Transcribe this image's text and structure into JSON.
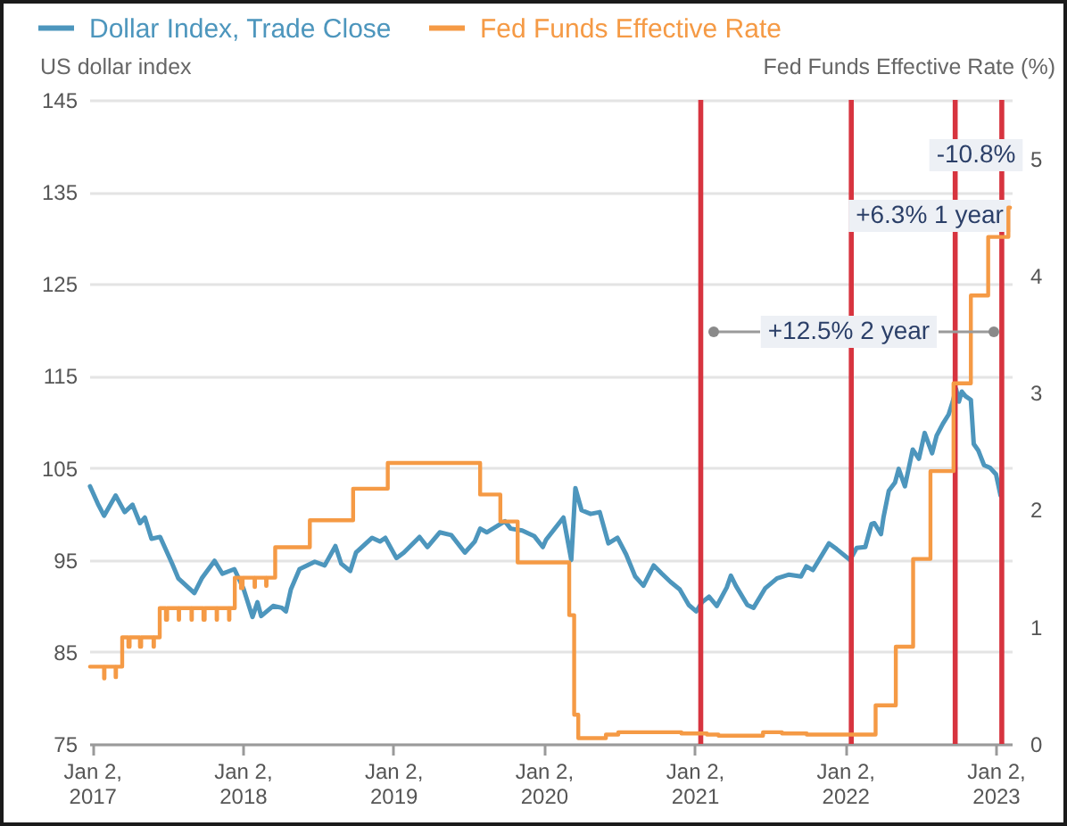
{
  "chart_data": {
    "type": "line",
    "ylabel": "US dollar index",
    "y2label": "Fed Funds Effective Rate (%)",
    "xlim": [
      "2016-12-26",
      "2023-02-10"
    ],
    "xticks": [
      {
        "value": "2017-01-02",
        "label": "Jan 2, 2017"
      },
      {
        "value": "2018-01-02",
        "label": "Jan 2, 2018"
      },
      {
        "value": "2019-01-02",
        "label": "Jan 2, 2019"
      },
      {
        "value": "2020-01-02",
        "label": "Jan 2, 2020"
      },
      {
        "value": "2021-01-02",
        "label": "Jan 2, 2021"
      },
      {
        "value": "2022-01-02",
        "label": "Jan 2, 2022"
      },
      {
        "value": "2023-01-02",
        "label": "Jan 2, 2023"
      }
    ],
    "ylim": [
      75,
      145
    ],
    "yticks": [
      75,
      85,
      95,
      105,
      115,
      125,
      135,
      145
    ],
    "y2lim": [
      0,
      5.5
    ],
    "y2ticks": [
      0,
      1,
      2,
      3,
      4,
      5
    ],
    "grid": "y",
    "legend": "top left",
    "series": [
      {
        "name": "Dollar Index, Trade Close",
        "color": "#4d96bd",
        "x": [
          "2016-12-28",
          "2017-01-16",
          "2017-01-31",
          "2017-02-28",
          "2017-03-22",
          "2017-04-10",
          "2017-04-28",
          "2017-05-10",
          "2017-05-26",
          "2017-06-16",
          "2017-07-15",
          "2017-07-30",
          "2017-09-07",
          "2017-09-25",
          "2017-10-26",
          "2017-11-14",
          "2017-12-13",
          "2018-01-04",
          "2018-01-26",
          "2018-02-07",
          "2018-02-16",
          "2018-03-17",
          "2018-04-07",
          "2018-04-17",
          "2018-04-29",
          "2018-05-20",
          "2018-06-26",
          "2018-07-20",
          "2018-08-15",
          "2018-08-29",
          "2018-09-20",
          "2018-10-04",
          "2018-11-12",
          "2018-12-01",
          "2018-12-14",
          "2019-01-10",
          "2019-01-28",
          "2019-03-07",
          "2019-03-26",
          "2019-04-25",
          "2019-05-23",
          "2019-06-25",
          "2019-07-19",
          "2019-08-01",
          "2019-08-17",
          "2019-09-30",
          "2019-10-14",
          "2019-11-11",
          "2019-12-10",
          "2019-12-31",
          "2020-01-08",
          "2020-02-19",
          "2020-03-09",
          "2020-03-19",
          "2020-04-03",
          "2020-04-25",
          "2020-05-17",
          "2020-06-07",
          "2020-06-29",
          "2020-07-20",
          "2020-08-11",
          "2020-08-31",
          "2020-09-25",
          "2020-10-15",
          "2020-11-05",
          "2020-11-27",
          "2020-12-19",
          "2021-01-06",
          "2021-01-20",
          "2021-02-06",
          "2021-02-25",
          "2021-03-21",
          "2021-03-31",
          "2021-04-12",
          "2021-05-10",
          "2021-05-25",
          "2021-06-22",
          "2021-07-21",
          "2021-08-19",
          "2021-09-17",
          "2021-09-30",
          "2021-10-16",
          "2021-11-24",
          "2021-12-12",
          "2022-01-14",
          "2022-01-30",
          "2022-02-20",
          "2022-03-07",
          "2022-03-14",
          "2022-03-30",
          "2022-04-05",
          "2022-04-18",
          "2022-05-03",
          "2022-05-12",
          "2022-05-27",
          "2022-06-15",
          "2022-06-30",
          "2022-07-14",
          "2022-08-01",
          "2022-08-12",
          "2022-08-27",
          "2022-09-10",
          "2022-09-20",
          "2022-09-28",
          "2022-10-05",
          "2022-10-12",
          "2022-10-21",
          "2022-11-03",
          "2022-11-10",
          "2022-11-21",
          "2022-12-05",
          "2022-12-20",
          "2023-01-03",
          "2023-01-14"
        ],
        "values": [
          103.0,
          101.1,
          99.8,
          102.0,
          100.2,
          101.0,
          99.0,
          99.6,
          97.3,
          97.5,
          94.6,
          93.0,
          91.4,
          93.0,
          94.9,
          93.5,
          94.0,
          91.9,
          88.8,
          90.4,
          88.9,
          90.0,
          89.8,
          89.4,
          91.8,
          94.0,
          94.8,
          94.4,
          96.5,
          94.6,
          93.8,
          95.8,
          97.4,
          97.0,
          97.4,
          95.2,
          95.8,
          97.5,
          96.4,
          98.0,
          97.7,
          95.8,
          97.0,
          98.4,
          98.0,
          99.2,
          98.4,
          98.2,
          97.6,
          96.4,
          97.2,
          99.6,
          95.0,
          102.8,
          100.4,
          100.0,
          100.2,
          96.8,
          97.4,
          95.6,
          93.2,
          92.2,
          94.4,
          93.5,
          92.6,
          91.8,
          90.1,
          89.4,
          90.4,
          91.0,
          90.0,
          92.0,
          93.3,
          92.2,
          90.1,
          89.8,
          91.9,
          93.0,
          93.4,
          93.2,
          94.3,
          93.9,
          96.8,
          96.2,
          95.0,
          96.3,
          96.4,
          98.9,
          99.0,
          97.8,
          99.6,
          102.5,
          103.4,
          104.9,
          103.0,
          107.0,
          106.0,
          108.8,
          106.6,
          108.5,
          109.8,
          110.8,
          112.2,
          113.6,
          112.2,
          113.3,
          112.8,
          112.4,
          107.6,
          106.9,
          105.3,
          105.0,
          104.3,
          102.0
        ]
      },
      {
        "name": "Fed Funds Effective Rate",
        "color": "#f59a45",
        "type": "step",
        "axis": "y2",
        "x": [
          "2016-12-28",
          "2017-01-31",
          "2017-02-01",
          "2017-02-28",
          "2017-03-01",
          "2017-03-16",
          "2017-03-31",
          "2017-04-03",
          "2017-04-28",
          "2017-05-01",
          "2017-05-31",
          "2017-06-01",
          "2017-06-15",
          "2017-06-30",
          "2017-07-03",
          "2017-07-31",
          "2017-08-01",
          "2017-08-31",
          "2017-09-01",
          "2017-09-29",
          "2017-10-02",
          "2017-10-31",
          "2017-11-01",
          "2017-11-30",
          "2017-12-01",
          "2017-12-14",
          "2017-12-29",
          "2018-01-02",
          "2018-01-31",
          "2018-02-01",
          "2018-02-28",
          "2018-03-01",
          "2018-03-22",
          "2018-06-14",
          "2018-09-27",
          "2018-12-20",
          "2019-08-01",
          "2019-09-19",
          "2019-10-31",
          "2020-03-04",
          "2020-03-16",
          "2020-03-26",
          "2020-06-01",
          "2020-07-01",
          "2020-12-01",
          "2021-02-01",
          "2021-03-01",
          "2021-06-17",
          "2021-08-02",
          "2021-10-01",
          "2022-03-17",
          "2022-05-05",
          "2022-06-16",
          "2022-07-28",
          "2022-09-22",
          "2022-11-03",
          "2022-12-15",
          "2023-02-02",
          "2023-02-06"
        ],
        "values": [
          0.66,
          0.56,
          0.66,
          0.57,
          0.66,
          0.91,
          0.83,
          0.91,
          0.83,
          0.91,
          0.83,
          0.91,
          1.16,
          1.06,
          1.16,
          1.06,
          1.16,
          1.06,
          1.16,
          1.06,
          1.16,
          1.06,
          1.16,
          1.06,
          1.16,
          1.42,
          1.33,
          1.42,
          1.34,
          1.42,
          1.35,
          1.42,
          1.68,
          1.91,
          2.18,
          2.4,
          2.13,
          1.9,
          1.55,
          1.1,
          0.25,
          0.05,
          0.08,
          0.1,
          0.09,
          0.08,
          0.07,
          0.1,
          0.09,
          0.08,
          0.33,
          0.83,
          1.58,
          2.33,
          3.08,
          3.83,
          4.33,
          4.58,
          4.58
        ]
      }
    ],
    "ref_lines": [
      {
        "axis": "x",
        "value": "2021-01-17",
        "color": "#d7343f"
      },
      {
        "axis": "x",
        "value": "2022-01-17",
        "color": "#d7343f"
      },
      {
        "axis": "x",
        "value": "2022-09-26",
        "color": "#d7343f"
      },
      {
        "axis": "x",
        "value": "2023-01-17",
        "color": "#d7343f"
      }
    ],
    "annotations": [
      "-10.8%",
      "+6.3% 1 year",
      {
        "text": "+12.5% 2 year",
        "x": "2022-01-11",
        "y": 119.8
      }
    ]
  }
}
